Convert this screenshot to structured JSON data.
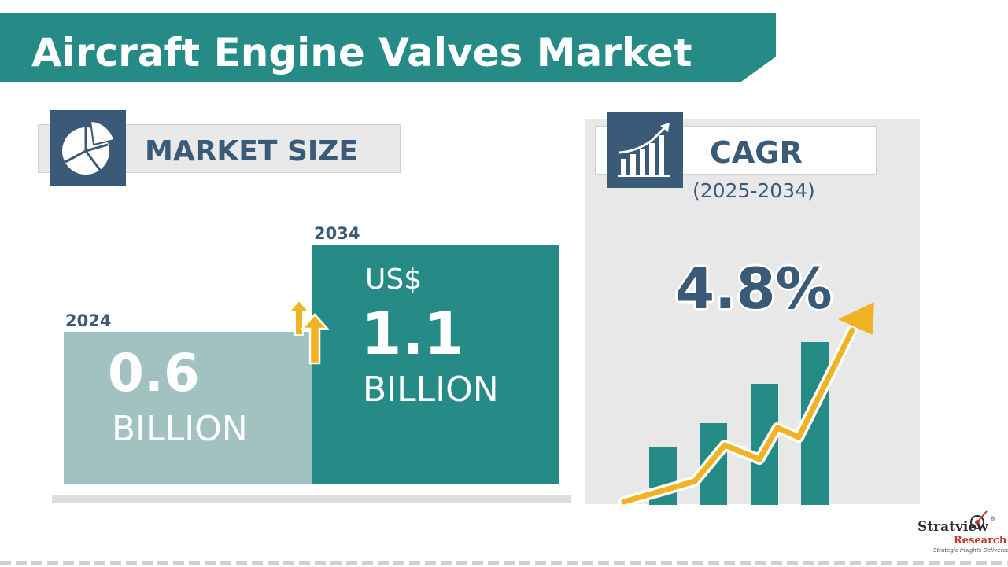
{
  "title": "Aircraft Engine Valves Market",
  "colors": {
    "teal": "#268a86",
    "light_teal": "#a2c2c2",
    "navy": "#3a5a78",
    "gold": "#f0b323"
  },
  "market_size": {
    "label": "MARKET SIZE",
    "icon": "pie-chart-icon",
    "items": [
      {
        "year": "2024",
        "currency": "",
        "value": "0.6",
        "unit": "BILLION"
      },
      {
        "year": "2034",
        "currency": "US$",
        "value": "1.1",
        "unit": "BILLION"
      }
    ],
    "growth_icon": "up-arrows-icon"
  },
  "cagr": {
    "label": "CAGR",
    "period": "(2025-2034)",
    "value": "4.8%",
    "icon": "bar-growth-icon",
    "illustration": "growth-chart-icon"
  },
  "logo": {
    "name": "Stratview",
    "sub": "Research",
    "tagline": "Strategic Insights Delivered",
    "reg": "®"
  }
}
